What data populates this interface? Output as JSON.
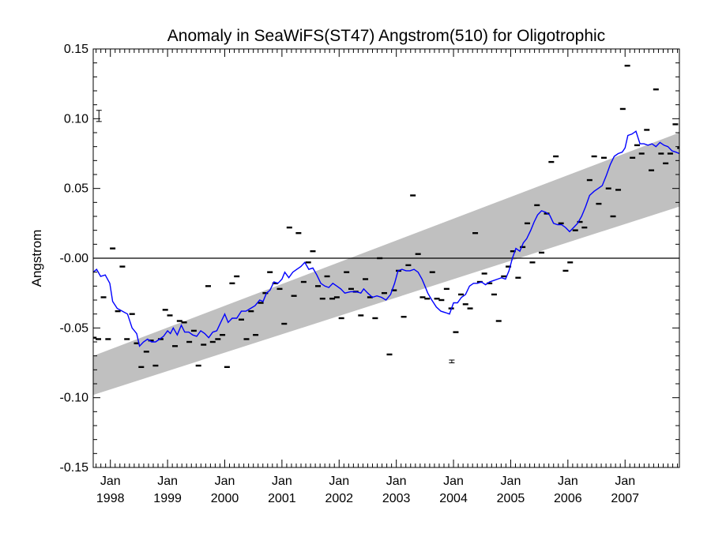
{
  "chart_data": {
    "type": "line",
    "title": "Anomaly in SeaWiFS(ST47) Angstrom(510) for Oligotrophic",
    "ylabel": "Angstrom",
    "xlabel": "",
    "xlim": [
      1997.7,
      2007.95
    ],
    "ylim": [
      -0.15,
      0.15
    ],
    "y_ticks": [
      0.15,
      0.1,
      0.05,
      0.0,
      -0.05,
      -0.1,
      -0.15
    ],
    "y_tick_labels": [
      "0.15",
      "0.10",
      "0.05",
      "-0.00",
      "-0.05",
      "-0.10",
      "-0.15"
    ],
    "x_ticks": [
      {
        "x": 1998,
        "month": "Jan",
        "year": "1998"
      },
      {
        "x": 1999,
        "month": "Jan",
        "year": "1999"
      },
      {
        "x": 2000,
        "month": "Jan",
        "year": "2000"
      },
      {
        "x": 2001,
        "month": "Jan",
        "year": "2001"
      },
      {
        "x": 2002,
        "month": "Jan",
        "year": "2002"
      },
      {
        "x": 2003,
        "month": "Jan",
        "year": "2003"
      },
      {
        "x": 2004,
        "month": "Jan",
        "year": "2004"
      },
      {
        "x": 2005,
        "month": "Jan",
        "year": "2005"
      },
      {
        "x": 2006,
        "month": "Jan",
        "year": "2006"
      },
      {
        "x": 2007,
        "month": "Jan",
        "year": "2007"
      }
    ],
    "zero_line": 0,
    "trend_band": {
      "x": [
        1997.7,
        2007.95
      ],
      "lower": [
        -0.098,
        0.037
      ],
      "upper": [
        -0.07,
        0.09
      ],
      "color": "#c0c0c0"
    },
    "error_bars": [
      {
        "x": 1997.8,
        "y": 0.102,
        "low": 0.098,
        "high": 0.106
      },
      {
        "x": 2003.97,
        "y": -0.074,
        "low": -0.075,
        "high": -0.073
      }
    ],
    "series": [
      {
        "kind": "monthly-points",
        "color": "#000000",
        "points": [
          [
            1997.71,
            -0.057
          ],
          [
            1997.79,
            -0.058
          ],
          [
            1997.88,
            -0.028
          ],
          [
            1997.96,
            -0.058
          ],
          [
            1998.04,
            0.007
          ],
          [
            1998.13,
            -0.038
          ],
          [
            1998.21,
            -0.006
          ],
          [
            1998.29,
            -0.058
          ],
          [
            1998.38,
            -0.04
          ],
          [
            1998.46,
            -0.061
          ],
          [
            1998.54,
            -0.078
          ],
          [
            1998.63,
            -0.067
          ],
          [
            1998.71,
            -0.059
          ],
          [
            1998.79,
            -0.077
          ],
          [
            1998.88,
            -0.058
          ],
          [
            1998.96,
            -0.037
          ],
          [
            1999.04,
            -0.041
          ],
          [
            1999.13,
            -0.063
          ],
          [
            1999.21,
            -0.045
          ],
          [
            1999.29,
            -0.046
          ],
          [
            1999.38,
            -0.06
          ],
          [
            1999.46,
            -0.052
          ],
          [
            1999.54,
            -0.077
          ],
          [
            1999.63,
            -0.062
          ],
          [
            1999.71,
            -0.02
          ],
          [
            1999.79,
            -0.06
          ],
          [
            1999.88,
            -0.058
          ],
          [
            1999.96,
            -0.055
          ],
          [
            2000.04,
            -0.078
          ],
          [
            2000.13,
            -0.018
          ],
          [
            2000.21,
            -0.013
          ],
          [
            2000.29,
            -0.044
          ],
          [
            2000.38,
            -0.058
          ],
          [
            2000.46,
            -0.038
          ],
          [
            2000.54,
            -0.055
          ],
          [
            2000.63,
            -0.032
          ],
          [
            2000.71,
            -0.025
          ],
          [
            2000.79,
            -0.01
          ],
          [
            2000.88,
            -0.018
          ],
          [
            2000.96,
            -0.022
          ],
          [
            2001.04,
            -0.047
          ],
          [
            2001.13,
            0.022
          ],
          [
            2001.21,
            -0.027
          ],
          [
            2001.29,
            0.018
          ],
          [
            2001.38,
            -0.017
          ],
          [
            2001.46,
            -0.003
          ],
          [
            2001.54,
            0.005
          ],
          [
            2001.63,
            -0.02
          ],
          [
            2001.71,
            -0.029
          ],
          [
            2001.79,
            -0.013
          ],
          [
            2001.88,
            -0.029
          ],
          [
            2001.96,
            -0.028
          ],
          [
            2002.04,
            -0.043
          ],
          [
            2002.13,
            -0.01
          ],
          [
            2002.21,
            -0.022
          ],
          [
            2002.29,
            -0.024
          ],
          [
            2002.38,
            -0.041
          ],
          [
            2002.46,
            -0.015
          ],
          [
            2002.54,
            -0.028
          ],
          [
            2002.63,
            -0.043
          ],
          [
            2002.71,
            0.0
          ],
          [
            2002.79,
            -0.025
          ],
          [
            2002.88,
            -0.069
          ],
          [
            2002.96,
            -0.023
          ],
          [
            2003.04,
            -0.009
          ],
          [
            2003.13,
            -0.042
          ],
          [
            2003.21,
            -0.005
          ],
          [
            2003.29,
            0.045
          ],
          [
            2003.38,
            0.003
          ],
          [
            2003.46,
            -0.028
          ],
          [
            2003.54,
            -0.029
          ],
          [
            2003.63,
            -0.01
          ],
          [
            2003.71,
            -0.029
          ],
          [
            2003.79,
            -0.03
          ],
          [
            2003.88,
            -0.022
          ],
          [
            2003.96,
            -0.036
          ],
          [
            2004.04,
            -0.053
          ],
          [
            2004.13,
            -0.026
          ],
          [
            2004.21,
            -0.033
          ],
          [
            2004.29,
            -0.036
          ],
          [
            2004.38,
            0.018
          ],
          [
            2004.46,
            -0.017
          ],
          [
            2004.54,
            -0.011
          ],
          [
            2004.63,
            -0.018
          ],
          [
            2004.71,
            -0.026
          ],
          [
            2004.79,
            -0.045
          ],
          [
            2004.88,
            -0.013
          ],
          [
            2004.96,
            -0.006
          ],
          [
            2005.04,
            0.005
          ],
          [
            2005.13,
            -0.014
          ],
          [
            2005.21,
            0.008
          ],
          [
            2005.29,
            0.025
          ],
          [
            2005.38,
            -0.003
          ],
          [
            2005.46,
            0.038
          ],
          [
            2005.54,
            0.004
          ],
          [
            2005.63,
            0.032
          ],
          [
            2005.71,
            0.069
          ],
          [
            2005.79,
            0.073
          ],
          [
            2005.88,
            0.025
          ],
          [
            2005.96,
            -0.009
          ],
          [
            2006.04,
            -0.003
          ],
          [
            2006.13,
            0.02
          ],
          [
            2006.21,
            0.026
          ],
          [
            2006.29,
            0.022
          ],
          [
            2006.38,
            0.056
          ],
          [
            2006.46,
            0.073
          ],
          [
            2006.54,
            0.039
          ],
          [
            2006.63,
            0.072
          ],
          [
            2006.71,
            0.05
          ],
          [
            2006.79,
            0.03
          ],
          [
            2006.88,
            0.049
          ],
          [
            2006.96,
            0.107
          ],
          [
            2007.04,
            0.138
          ],
          [
            2007.13,
            0.072
          ],
          [
            2007.21,
            0.081
          ],
          [
            2007.29,
            0.075
          ],
          [
            2007.38,
            0.092
          ],
          [
            2007.46,
            0.063
          ],
          [
            2007.54,
            0.121
          ],
          [
            2007.63,
            0.075
          ],
          [
            2007.71,
            0.068
          ],
          [
            2007.79,
            0.075
          ],
          [
            2007.88,
            0.096
          ],
          [
            2007.96,
            0.079
          ]
        ]
      },
      {
        "kind": "running-mean",
        "color": "#0000ff",
        "points": [
          [
            1997.7,
            -0.01
          ],
          [
            1997.76,
            -0.008
          ],
          [
            1997.83,
            -0.013
          ],
          [
            1997.91,
            -0.012
          ],
          [
            1997.99,
            -0.018
          ],
          [
            1998.04,
            -0.031
          ],
          [
            1998.12,
            -0.036
          ],
          [
            1998.21,
            -0.038
          ],
          [
            1998.3,
            -0.04
          ],
          [
            1998.38,
            -0.05
          ],
          [
            1998.46,
            -0.054
          ],
          [
            1998.51,
            -0.063
          ],
          [
            1998.58,
            -0.06
          ],
          [
            1998.65,
            -0.058
          ],
          [
            1998.72,
            -0.06
          ],
          [
            1998.79,
            -0.06
          ],
          [
            1998.86,
            -0.058
          ],
          [
            1998.93,
            -0.056
          ],
          [
            1999.0,
            -0.052
          ],
          [
            1999.05,
            -0.054
          ],
          [
            1999.1,
            -0.05
          ],
          [
            1999.17,
            -0.055
          ],
          [
            1999.24,
            -0.048
          ],
          [
            1999.3,
            -0.053
          ],
          [
            1999.37,
            -0.053
          ],
          [
            1999.44,
            -0.055
          ],
          [
            1999.51,
            -0.056
          ],
          [
            1999.58,
            -0.052
          ],
          [
            1999.65,
            -0.054
          ],
          [
            1999.72,
            -0.057
          ],
          [
            1999.79,
            -0.053
          ],
          [
            1999.86,
            -0.052
          ],
          [
            1999.93,
            -0.046
          ],
          [
            2000.0,
            -0.04
          ],
          [
            2000.06,
            -0.046
          ],
          [
            2000.13,
            -0.043
          ],
          [
            2000.21,
            -0.043
          ],
          [
            2000.29,
            -0.038
          ],
          [
            2000.37,
            -0.038
          ],
          [
            2000.45,
            -0.036
          ],
          [
            2000.53,
            -0.034
          ],
          [
            2000.61,
            -0.03
          ],
          [
            2000.67,
            -0.031
          ],
          [
            2000.73,
            -0.025
          ],
          [
            2000.79,
            -0.023
          ],
          [
            2000.86,
            -0.017
          ],
          [
            2000.93,
            -0.018
          ],
          [
            2001.0,
            -0.015
          ],
          [
            2001.05,
            -0.01
          ],
          [
            2001.12,
            -0.014
          ],
          [
            2001.19,
            -0.01
          ],
          [
            2001.26,
            -0.008
          ],
          [
            2001.33,
            -0.006
          ],
          [
            2001.4,
            -0.003
          ],
          [
            2001.47,
            -0.008
          ],
          [
            2001.54,
            -0.007
          ],
          [
            2001.61,
            -0.012
          ],
          [
            2001.68,
            -0.018
          ],
          [
            2001.75,
            -0.02
          ],
          [
            2001.82,
            -0.021
          ],
          [
            2001.89,
            -0.018
          ],
          [
            2001.96,
            -0.02
          ],
          [
            2002.03,
            -0.022
          ],
          [
            2002.1,
            -0.025
          ],
          [
            2002.2,
            -0.024
          ],
          [
            2002.3,
            -0.024
          ],
          [
            2002.38,
            -0.025
          ],
          [
            2002.43,
            -0.022
          ],
          [
            2002.5,
            -0.025
          ],
          [
            2002.58,
            -0.028
          ],
          [
            2002.66,
            -0.027
          ],
          [
            2002.74,
            -0.028
          ],
          [
            2002.82,
            -0.03
          ],
          [
            2002.9,
            -0.026
          ],
          [
            2002.97,
            -0.018
          ],
          [
            2003.03,
            -0.009
          ],
          [
            2003.1,
            -0.008
          ],
          [
            2003.17,
            -0.009
          ],
          [
            2003.24,
            -0.009
          ],
          [
            2003.31,
            -0.008
          ],
          [
            2003.38,
            -0.01
          ],
          [
            2003.45,
            -0.015
          ],
          [
            2003.5,
            -0.02
          ],
          [
            2003.55,
            -0.025
          ],
          [
            2003.62,
            -0.03
          ],
          [
            2003.7,
            -0.035
          ],
          [
            2003.78,
            -0.038
          ],
          [
            2003.86,
            -0.039
          ],
          [
            2003.93,
            -0.04
          ],
          [
            2004.0,
            -0.032
          ],
          [
            2004.07,
            -0.032
          ],
          [
            2004.14,
            -0.028
          ],
          [
            2004.21,
            -0.026
          ],
          [
            2004.28,
            -0.02
          ],
          [
            2004.35,
            -0.018
          ],
          [
            2004.42,
            -0.018
          ],
          [
            2004.49,
            -0.017
          ],
          [
            2004.56,
            -0.019
          ],
          [
            2004.63,
            -0.017
          ],
          [
            2004.7,
            -0.016
          ],
          [
            2004.77,
            -0.015
          ],
          [
            2004.84,
            -0.014
          ],
          [
            2004.91,
            -0.015
          ],
          [
            2004.97,
            -0.009
          ],
          [
            2005.03,
            0.0
          ],
          [
            2005.09,
            0.007
          ],
          [
            2005.16,
            0.005
          ],
          [
            2005.22,
            0.011
          ],
          [
            2005.28,
            0.014
          ],
          [
            2005.35,
            0.02
          ],
          [
            2005.41,
            0.026
          ],
          [
            2005.47,
            0.031
          ],
          [
            2005.54,
            0.034
          ],
          [
            2005.61,
            0.033
          ],
          [
            2005.68,
            0.031
          ],
          [
            2005.75,
            0.025
          ],
          [
            2005.82,
            0.024
          ],
          [
            2005.89,
            0.024
          ],
          [
            2005.96,
            0.022
          ],
          [
            2006.03,
            0.019
          ],
          [
            2006.1,
            0.022
          ],
          [
            2006.17,
            0.025
          ],
          [
            2006.24,
            0.03
          ],
          [
            2006.31,
            0.037
          ],
          [
            2006.38,
            0.045
          ],
          [
            2006.46,
            0.048
          ],
          [
            2006.53,
            0.05
          ],
          [
            2006.6,
            0.052
          ],
          [
            2006.67,
            0.059
          ],
          [
            2006.74,
            0.067
          ],
          [
            2006.81,
            0.073
          ],
          [
            2006.88,
            0.075
          ],
          [
            2006.95,
            0.076
          ],
          [
            2007.0,
            0.079
          ],
          [
            2007.05,
            0.088
          ],
          [
            2007.12,
            0.089
          ],
          [
            2007.19,
            0.091
          ],
          [
            2007.26,
            0.082
          ],
          [
            2007.33,
            0.082
          ],
          [
            2007.4,
            0.081
          ],
          [
            2007.47,
            0.082
          ],
          [
            2007.54,
            0.08
          ],
          [
            2007.61,
            0.083
          ],
          [
            2007.68,
            0.081
          ],
          [
            2007.75,
            0.08
          ],
          [
            2007.82,
            0.077
          ],
          [
            2007.89,
            0.076
          ],
          [
            2007.95,
            0.075
          ]
        ]
      }
    ]
  }
}
